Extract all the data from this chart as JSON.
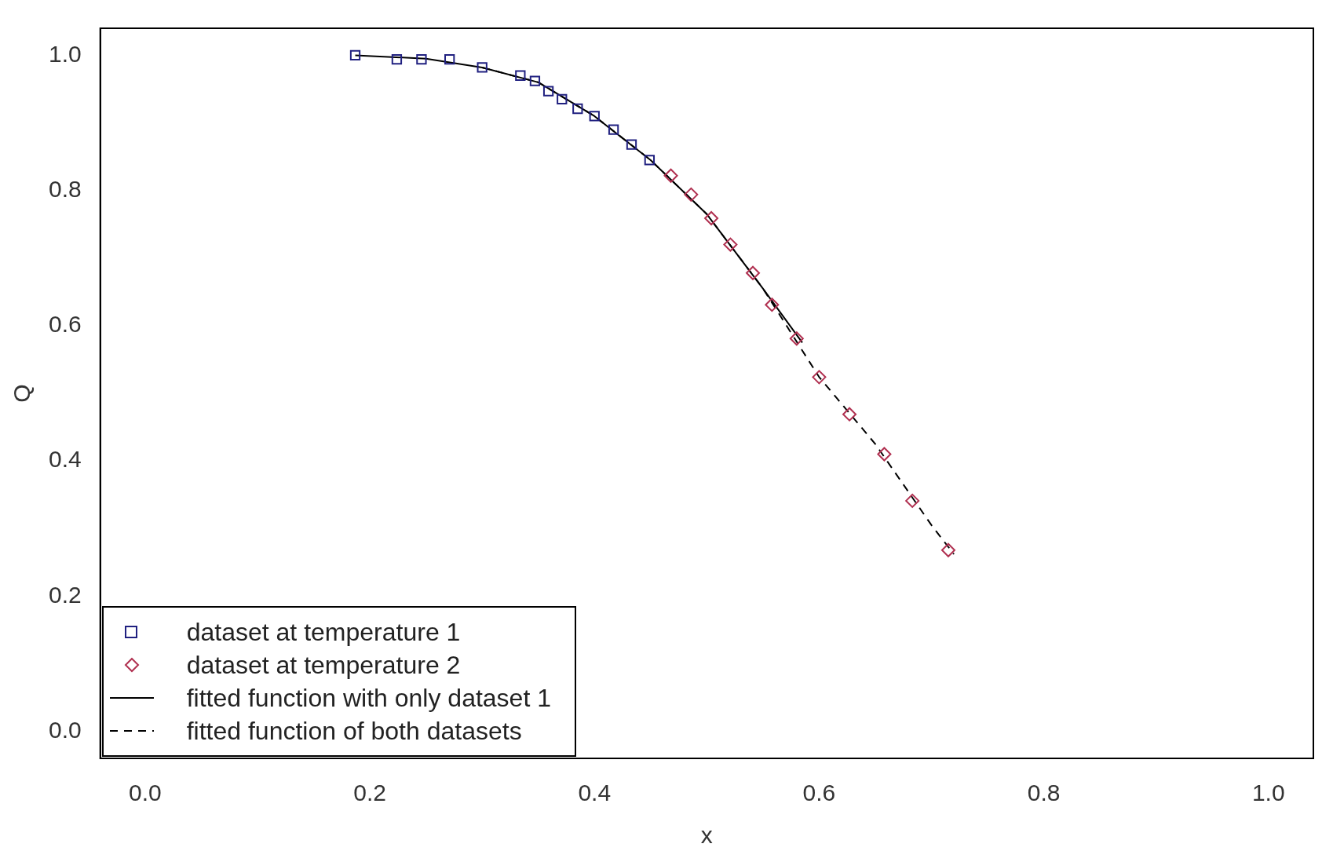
{
  "chart_data": {
    "type": "scatter",
    "xlabel": "x",
    "ylabel": "Q",
    "xlim": [
      -0.04,
      1.04
    ],
    "ylim": [
      -0.04,
      1.04
    ],
    "xticks": [
      {
        "value": 0,
        "label": "0.0"
      },
      0.2,
      0.4,
      0.6,
      0.8,
      {
        "value": 1,
        "label": "1.0"
      }
    ],
    "yticks": [
      {
        "value": 0,
        "label": "0.0"
      },
      0.2,
      0.4,
      0.6,
      0.8,
      {
        "value": 1,
        "label": "1.0"
      }
    ],
    "grid": false,
    "legend": "bottom left",
    "series": [
      {
        "name": "dataset at temperature 1",
        "marker": "square",
        "color": "#202080",
        "x": [
          0.187,
          0.224,
          0.246,
          0.271,
          0.3,
          0.334,
          0.347,
          0.359,
          0.371,
          0.385,
          0.4,
          0.417,
          0.433,
          0.449
        ],
        "values": [
          1.0,
          0.994,
          0.994,
          0.994,
          0.982,
          0.97,
          0.962,
          0.947,
          0.935,
          0.921,
          0.91,
          0.89,
          0.868,
          0.845
        ]
      },
      {
        "name": "dataset at temperature 2",
        "marker": "diamond",
        "color": "#b03050",
        "x": [
          0.468,
          0.486,
          0.504,
          0.521,
          0.541,
          0.558,
          0.58,
          0.6,
          0.627,
          0.658,
          0.683,
          0.715
        ],
        "values": [
          0.822,
          0.794,
          0.759,
          0.72,
          0.678,
          0.631,
          0.581,
          0.524,
          0.469,
          0.41,
          0.341,
          0.268
        ]
      },
      {
        "name": "fitted function with only dataset 1",
        "type": "line",
        "line_style": "solid",
        "marker": "none",
        "color": "#000000",
        "x": [
          0.187,
          0.25,
          0.3,
          0.35,
          0.4,
          0.45,
          0.5,
          0.55,
          0.585
        ],
        "values": [
          1.0,
          0.995,
          0.982,
          0.96,
          0.91,
          0.845,
          0.765,
          0.655,
          0.575
        ]
      },
      {
        "name": "fitted function of both datasets",
        "type": "line",
        "line_style": "dashed",
        "marker": "none",
        "color": "#000000",
        "x": [
          0.3,
          0.35,
          0.4,
          0.45,
          0.5,
          0.55,
          0.6,
          0.65,
          0.7,
          0.72
        ],
        "values": [
          0.982,
          0.96,
          0.91,
          0.845,
          0.765,
          0.655,
          0.524,
          0.425,
          0.305,
          0.262
        ]
      }
    ]
  }
}
